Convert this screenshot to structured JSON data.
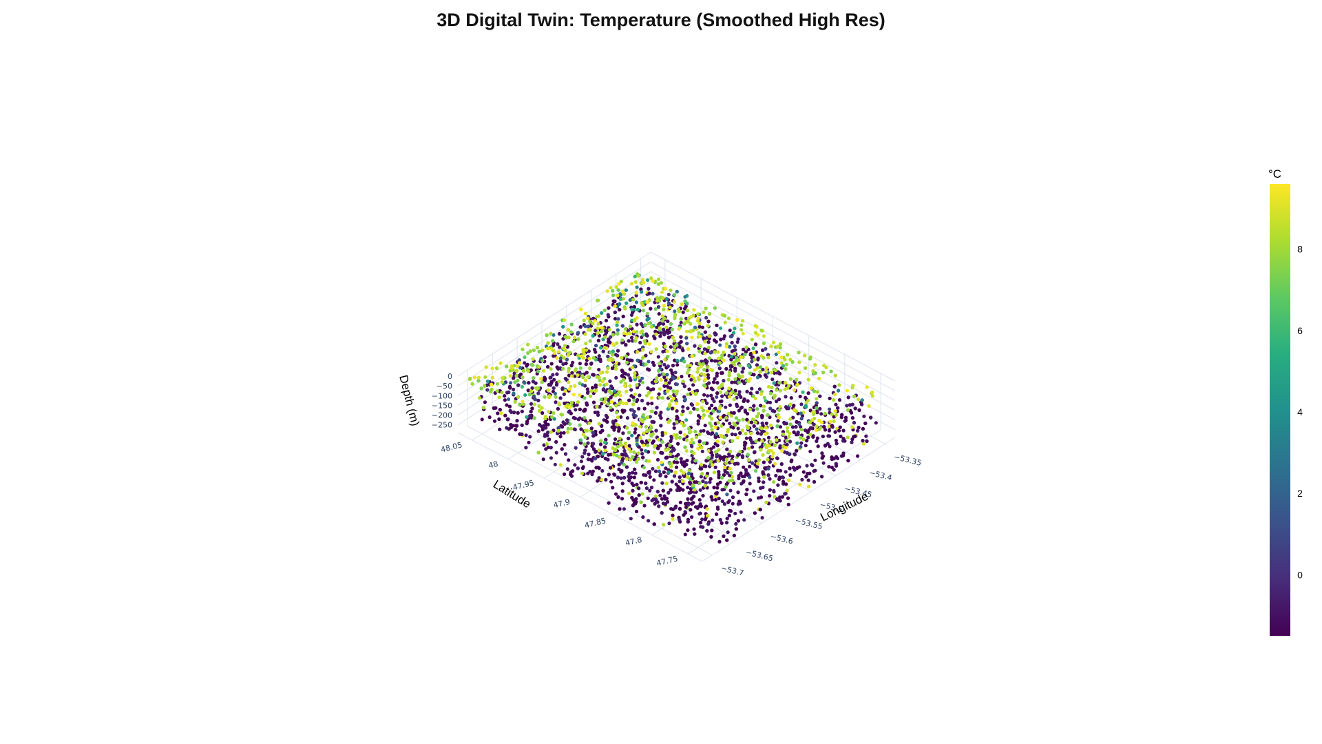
{
  "chart_data": {
    "type": "scatter3d",
    "title": "3D Digital Twin: Temperature (Smoothed High Res)",
    "x_axis": {
      "label": "Longitude",
      "range": [
        -53.72,
        -53.33
      ],
      "ticks": [
        -53.7,
        -53.65,
        -53.6,
        -53.55,
        -53.5,
        -53.45,
        -53.4,
        -53.35
      ],
      "tick_labels": [
        "−53.7",
        "−53.65",
        "−53.6",
        "−53.55",
        "−53.5",
        "−53.45",
        "−53.4",
        "−53.35"
      ]
    },
    "y_axis": {
      "label": "Latitude",
      "range": [
        47.73,
        48.07
      ],
      "ticks": [
        47.75,
        47.8,
        47.85,
        47.9,
        47.95,
        48,
        48.05
      ],
      "tick_labels": [
        "47.75",
        "47.8",
        "47.85",
        "47.9",
        "47.95",
        "48",
        "48.05"
      ]
    },
    "z_axis": {
      "label": "Depth (m)",
      "range": [
        -290,
        0
      ],
      "ticks": [
        0,
        -50,
        -100,
        -150,
        -200,
        -250
      ],
      "tick_labels": [
        "0",
        "−50",
        "−100",
        "−150",
        "−200",
        "−250"
      ]
    },
    "colorbar": {
      "title": "°C",
      "range": [
        -1.5,
        9.6
      ],
      "ticks": [
        0,
        2,
        4,
        6,
        8
      ],
      "tick_labels": [
        "0",
        "2",
        "4",
        "6",
        "8"
      ],
      "colorscale": "viridis"
    },
    "grid": true,
    "legend": "none",
    "data_summary": {
      "surface_temperature_c": 9.2,
      "bottom_temperature_c": -1.2,
      "depth_max_m": -290,
      "lon_extent": [
        -53.72,
        -53.36
      ],
      "lat_extent": [
        47.73,
        48.06
      ]
    }
  }
}
